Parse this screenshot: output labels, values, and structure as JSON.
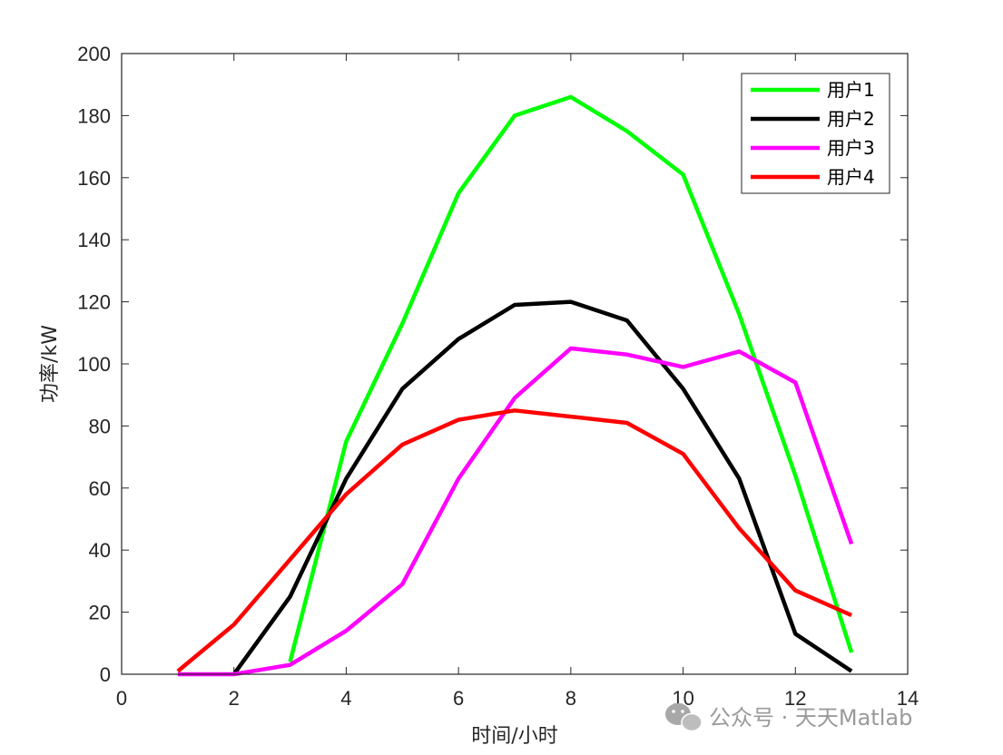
{
  "chart_data": {
    "type": "line",
    "xlabel": "时间/小时",
    "ylabel": "功率/kW",
    "xlim": [
      0,
      14
    ],
    "ylim": [
      0,
      200
    ],
    "xticks": [
      0,
      2,
      4,
      6,
      8,
      10,
      12,
      14
    ],
    "yticks": [
      0,
      20,
      40,
      60,
      80,
      100,
      120,
      140,
      160,
      180,
      200
    ],
    "grid": false,
    "legend_position": "top-right",
    "series": [
      {
        "name": "用户1",
        "color": "#00ff00",
        "x": [
          3,
          4,
          5,
          6,
          7,
          8,
          9,
          10,
          11,
          12,
          13
        ],
        "y": [
          4,
          75,
          113,
          155,
          180,
          186,
          175,
          161,
          116,
          64,
          7
        ]
      },
      {
        "name": "用户2",
        "color": "#000000",
        "x": [
          2,
          3,
          4,
          5,
          6,
          7,
          8,
          9,
          10,
          11,
          12,
          13
        ],
        "y": [
          0,
          25,
          63,
          92,
          108,
          119,
          120,
          114,
          92,
          63,
          13,
          1
        ]
      },
      {
        "name": "用户3",
        "color": "#ff00ff",
        "x": [
          1,
          2,
          3,
          4,
          5,
          6,
          7,
          8,
          9,
          10,
          11,
          12,
          13
        ],
        "y": [
          0,
          0,
          3,
          14,
          29,
          63,
          89,
          105,
          103,
          99,
          104,
          94,
          42
        ]
      },
      {
        "name": "用户4",
        "color": "#ff0000",
        "x": [
          1,
          2,
          3,
          4,
          5,
          6,
          7,
          8,
          9,
          10,
          11,
          12,
          13
        ],
        "y": [
          1,
          16,
          37,
          58,
          74,
          82,
          85,
          83,
          81,
          71,
          47,
          27,
          19
        ]
      }
    ]
  },
  "watermark": {
    "text": "公众号 · 天天Matlab",
    "icon": "wechat-icon"
  }
}
